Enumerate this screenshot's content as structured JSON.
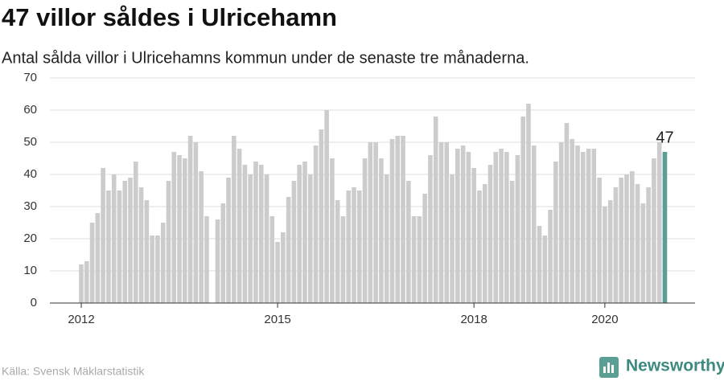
{
  "chart_data": {
    "type": "bar",
    "title": "47 villor såldes i Ulricehamn",
    "subtitle": "Antal sålda villor i Ulricehamns kommun under de senaste tre månaderna.",
    "source": "Källa: Svensk Mäklarstatistik",
    "brand": "Newsworthy",
    "categories": [
      "2012",
      null,
      null,
      null,
      null,
      null,
      null,
      null,
      null,
      null,
      null,
      null,
      null,
      null,
      null,
      null,
      null,
      null,
      null,
      null,
      null,
      null,
      null,
      null,
      null,
      null,
      null,
      null,
      null,
      null,
      null,
      null,
      null,
      null,
      null,
      null,
      "2015",
      null,
      null,
      null,
      null,
      null,
      null,
      null,
      null,
      null,
      null,
      null,
      null,
      null,
      null,
      null,
      null,
      null,
      null,
      null,
      null,
      null,
      null,
      null,
      null,
      null,
      null,
      null,
      null,
      null,
      null,
      null,
      null,
      null,
      null,
      null,
      "2018",
      null,
      null,
      null,
      null,
      null,
      null,
      null,
      null,
      null,
      null,
      null,
      null,
      null,
      null,
      null,
      null,
      null,
      null,
      null,
      null,
      null,
      null,
      null,
      "2020",
      null,
      null,
      null,
      null,
      null,
      null,
      null,
      null,
      null,
      null,
      null
    ],
    "values": [
      12,
      13,
      25,
      28,
      42,
      35,
      40,
      35,
      38,
      39,
      44,
      36,
      32,
      21,
      21,
      25,
      38,
      47,
      46,
      45,
      52,
      50,
      41,
      27,
      null,
      26,
      31,
      39,
      52,
      48,
      43,
      40,
      44,
      43,
      40,
      27,
      19,
      22,
      33,
      38,
      43,
      44,
      40,
      49,
      54,
      60,
      45,
      32,
      27,
      35,
      36,
      35,
      45,
      50,
      50,
      45,
      40,
      51,
      52,
      52,
      38,
      27,
      27,
      34,
      46,
      58,
      50,
      50,
      40,
      48,
      49,
      47,
      42,
      35,
      37,
      43,
      47,
      48,
      47,
      38,
      46,
      58,
      62,
      49,
      24,
      21,
      29,
      44,
      50,
      56,
      51,
      49,
      47,
      48,
      48,
      39,
      30,
      32,
      36,
      39,
      40,
      41,
      37,
      31,
      36,
      45,
      50,
      47
    ],
    "color": "#cccccc",
    "highlight_color": "#5b9e94",
    "ylim": [
      0,
      70
    ],
    "yticks": [
      0,
      10,
      20,
      30,
      40,
      50,
      60,
      70
    ],
    "grid": true
  }
}
